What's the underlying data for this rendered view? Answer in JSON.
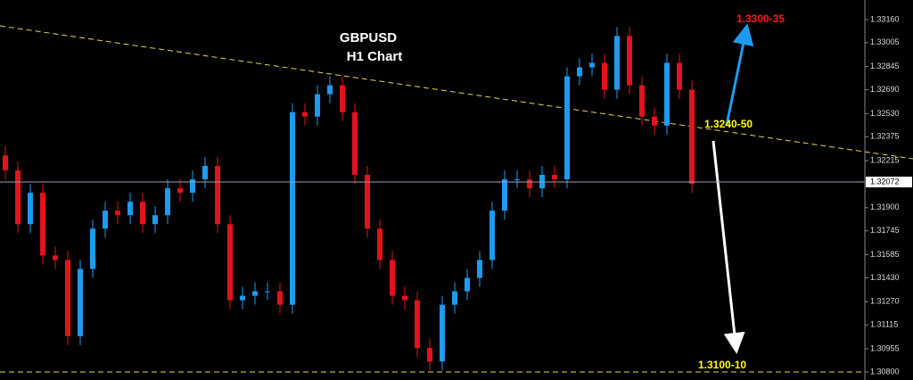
{
  "chart_data": {
    "type": "candlestick",
    "title": "GBPUSD",
    "subtitle": "H1 Chart",
    "annotations": [
      {
        "text": "1.3300-35",
        "color": "#ff1a1a"
      },
      {
        "text": "1.3240-50",
        "color": "#ffff00"
      },
      {
        "text": "1.3100-10",
        "color": "#ffff00"
      }
    ],
    "up_color": "#1e9bf0",
    "down_color": "#e3121c",
    "open": [
      1.3225,
      1.3215,
      1.3179,
      1.32,
      1.3158,
      1.3155,
      1.3104,
      1.3149,
      1.3176,
      1.3188,
      1.3185,
      1.3194,
      1.3179,
      1.3185,
      1.3203,
      1.32,
      1.3209,
      1.3218,
      1.3179,
      1.3128,
      1.3131,
      1.3134,
      1.3134,
      1.3125,
      1.3254,
      1.3251,
      1.3266,
      1.3272,
      1.3254,
      1.3212,
      1.3176,
      1.3155,
      1.3131,
      1.3128,
      1.3096,
      1.3087,
      1.3125,
      1.3134,
      1.3143,
      1.3155,
      1.3188,
      1.3209,
      1.3209,
      1.3203,
      1.3212,
      1.3209,
      1.3278,
      1.3284,
      1.3287,
      1.3269,
      1.3305,
      1.3272,
      1.3251,
      1.3245,
      1.3287,
      1.3269
    ],
    "high": [
      1.3231,
      1.3221,
      1.3206,
      1.3206,
      1.3164,
      1.3161,
      1.3155,
      1.3182,
      1.3194,
      1.3194,
      1.32,
      1.32,
      1.3191,
      1.3209,
      1.3209,
      1.3215,
      1.3224,
      1.3224,
      1.3185,
      1.3137,
      1.314,
      1.314,
      1.314,
      1.326,
      1.326,
      1.3272,
      1.3278,
      1.3278,
      1.326,
      1.3218,
      1.3182,
      1.3161,
      1.3137,
      1.3134,
      1.3102,
      1.3131,
      1.314,
      1.3149,
      1.3161,
      1.3194,
      1.3215,
      1.3215,
      1.3215,
      1.3218,
      1.3218,
      1.3284,
      1.329,
      1.3293,
      1.3293,
      1.3311,
      1.3311,
      1.3278,
      1.3257,
      1.3293,
      1.3293,
      1.3275
    ],
    "low": [
      1.3209,
      1.3173,
      1.3173,
      1.3152,
      1.3149,
      1.3098,
      1.3098,
      1.3143,
      1.317,
      1.3179,
      1.3179,
      1.3173,
      1.3173,
      1.3179,
      1.3194,
      1.3194,
      1.3203,
      1.3173,
      1.3122,
      1.3122,
      1.3125,
      1.3128,
      1.3119,
      1.3119,
      1.3245,
      1.3245,
      1.326,
      1.3248,
      1.3206,
      1.317,
      1.3149,
      1.3125,
      1.3122,
      1.309,
      1.3081,
      1.3081,
      1.3119,
      1.3128,
      1.3137,
      1.3149,
      1.3182,
      1.3203,
      1.3197,
      1.3197,
      1.3203,
      1.3203,
      1.3272,
      1.3278,
      1.3263,
      1.3263,
      1.3266,
      1.3245,
      1.3239,
      1.3239,
      1.3263,
      1.32
    ],
    "close": [
      1.3215,
      1.3179,
      1.32,
      1.3158,
      1.3155,
      1.3104,
      1.3149,
      1.3176,
      1.3188,
      1.3185,
      1.3194,
      1.3179,
      1.3185,
      1.3203,
      1.32,
      1.3209,
      1.3218,
      1.3179,
      1.3128,
      1.3131,
      1.3134,
      1.3134,
      1.3125,
      1.3254,
      1.3251,
      1.3266,
      1.3272,
      1.3254,
      1.3212,
      1.3176,
      1.3155,
      1.3131,
      1.3128,
      1.3096,
      1.3087,
      1.3125,
      1.3134,
      1.3143,
      1.3155,
      1.3188,
      1.3209,
      1.3209,
      1.3203,
      1.3212,
      1.3209,
      1.3278,
      1.3284,
      1.3287,
      1.3269,
      1.3305,
      1.3272,
      1.3251,
      1.3245,
      1.3287,
      1.3269,
      1.3206
    ],
    "current_price": {
      "value": 1.32072,
      "label": "1.32072"
    },
    "ylim": [
      1.30746,
      1.33291
    ],
    "yticks": [
      {
        "value": 1.3316,
        "label": "1.33160"
      },
      {
        "value": 1.33005,
        "label": "1.33005"
      },
      {
        "value": 1.32845,
        "label": "1.32845"
      },
      {
        "value": 1.3269,
        "label": "1.32690"
      },
      {
        "value": 1.3253,
        "label": "1.32530"
      },
      {
        "value": 1.32375,
        "label": "1.32375"
      },
      {
        "value": 1.32215,
        "label": "1.32215"
      },
      {
        "value": 1.319,
        "label": "1.31900"
      },
      {
        "value": 1.31745,
        "label": "1.31745"
      },
      {
        "value": 1.31585,
        "label": "1.31585"
      },
      {
        "value": 1.3143,
        "label": "1.31430"
      },
      {
        "value": 1.3127,
        "label": "1.31270"
      },
      {
        "value": 1.31115,
        "label": "1.31115"
      },
      {
        "value": 1.30955,
        "label": "1.30955"
      },
      {
        "value": 1.308,
        "label": "1.30800"
      }
    ]
  }
}
